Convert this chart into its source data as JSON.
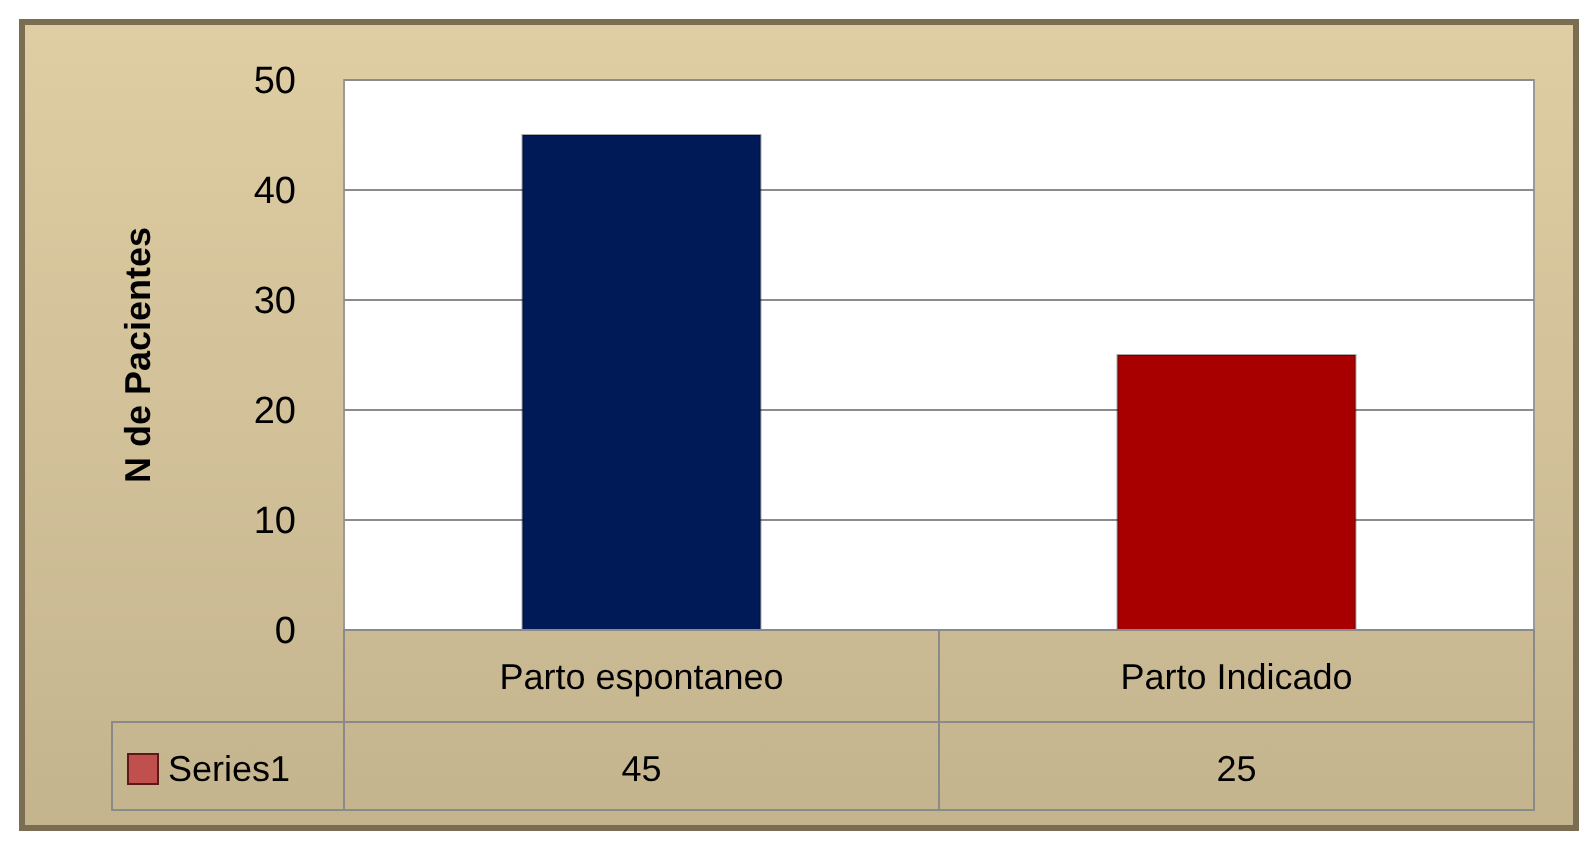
{
  "chart_data": {
    "type": "bar",
    "ylabel": "N de Pacientes",
    "categories": [
      "Parto espontaneo",
      "Parto Indicado"
    ],
    "series": [
      {
        "name": "Series1",
        "color": "#c0504d",
        "colors": [
          "#001a57",
          "#a80000"
        ],
        "values": [
          45,
          25
        ]
      }
    ],
    "ylim": [
      0,
      50
    ],
    "yticks": [
      0,
      10,
      20,
      30,
      40,
      50
    ],
    "grid": "y",
    "legend": "bottom left",
    "data_labels": true
  }
}
